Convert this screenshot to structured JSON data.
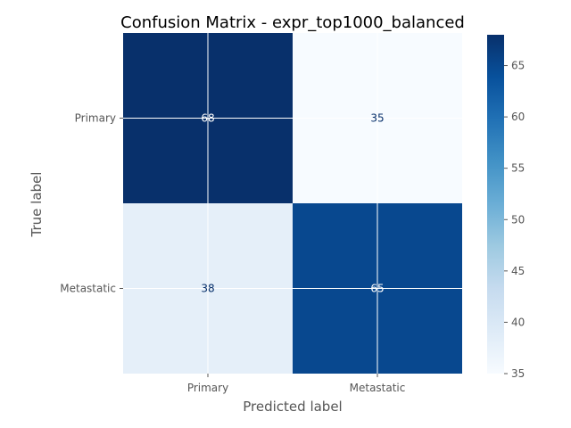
{
  "chart_data": {
    "type": "heatmap",
    "title": "Confusion Matrix - expr_top1000_balanced",
    "xlabel": "Predicted label",
    "ylabel": "True label",
    "x_categories": [
      "Primary",
      "Metastatic"
    ],
    "y_categories": [
      "Primary",
      "Metastatic"
    ],
    "values": [
      [
        68,
        35
      ],
      [
        38,
        65
      ]
    ],
    "colormap": "Blues",
    "colorbar": {
      "range": [
        35,
        68
      ],
      "ticks": [
        35,
        40,
        45,
        50,
        55,
        60,
        65
      ]
    },
    "grid": true
  }
}
